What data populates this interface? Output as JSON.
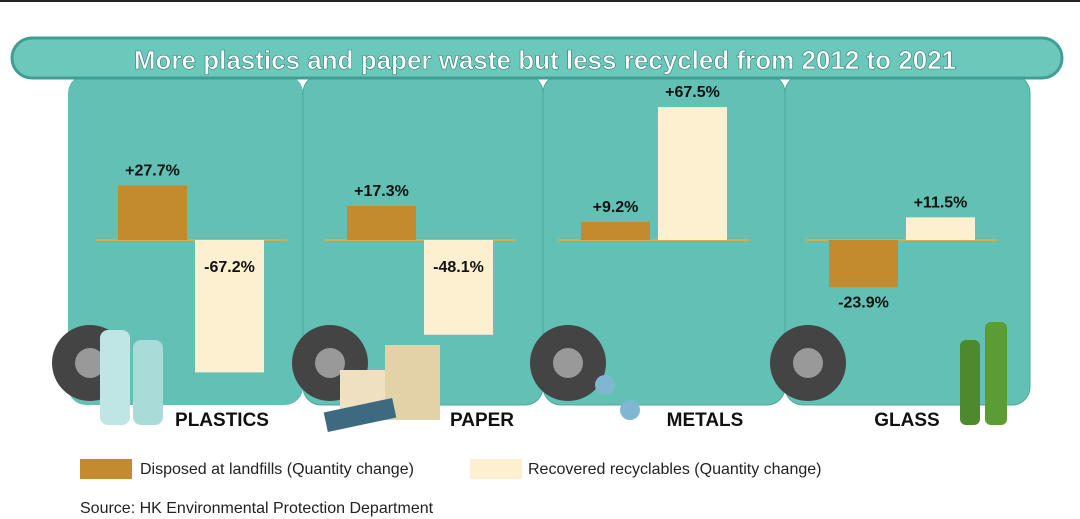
{
  "chart_data": {
    "type": "bar",
    "title": "More plastics and paper waste but less recycled from 2012 to 2021",
    "categories": [
      "PLASTICS",
      "PAPER",
      "METALS",
      "GLASS"
    ],
    "series": [
      {
        "name": "Disposed at landfills (Quantity change)",
        "color": "#c48a2e",
        "values": [
          27.7,
          17.3,
          9.2,
          -23.9
        ],
        "value_labels": [
          "+27.7%",
          "+17.3%",
          "+9.2%",
          "-23.9%"
        ]
      },
      {
        "name": "Recovered recyclables (Quantity change)",
        "color": "#fdf0d0",
        "values": [
          -67.2,
          -48.1,
          67.5,
          11.5
        ],
        "value_labels": [
          "-67.2%",
          "-48.1%",
          "+67.5%",
          "+11.5%"
        ]
      }
    ],
    "source": "Source: HK Environmental Protection Department"
  }
}
